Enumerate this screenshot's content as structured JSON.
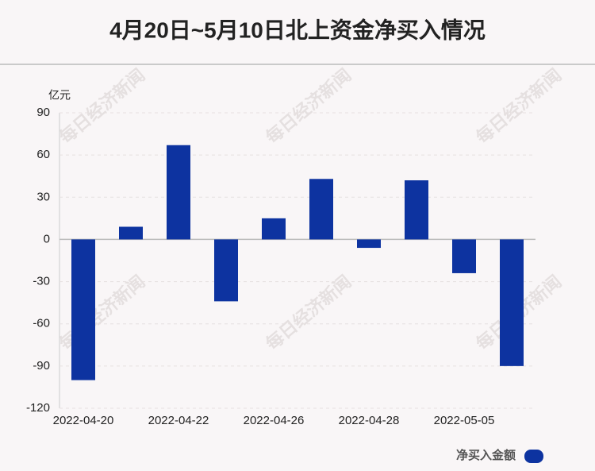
{
  "chart_data": {
    "type": "bar",
    "title": "4月20日~5月10日北上资金净买入情况",
    "y_unit": "亿元",
    "watermark": "每日经济新闻",
    "categories": [
      "2022-04-20",
      null,
      "2022-04-22",
      null,
      "2022-04-26",
      null,
      "2022-04-28",
      null,
      "2022-05-05",
      null
    ],
    "series": [
      {
        "name": "净买入金额",
        "color": "#0d33a0",
        "values": [
          -100,
          9,
          67,
          -44,
          15,
          43,
          -6,
          42,
          -24,
          -90
        ]
      }
    ],
    "ylim": [
      -120,
      90
    ],
    "yticks": [
      -120,
      -90,
      -60,
      -30,
      0,
      30,
      60,
      90
    ],
    "grid": true,
    "legend": "bottom-right"
  }
}
